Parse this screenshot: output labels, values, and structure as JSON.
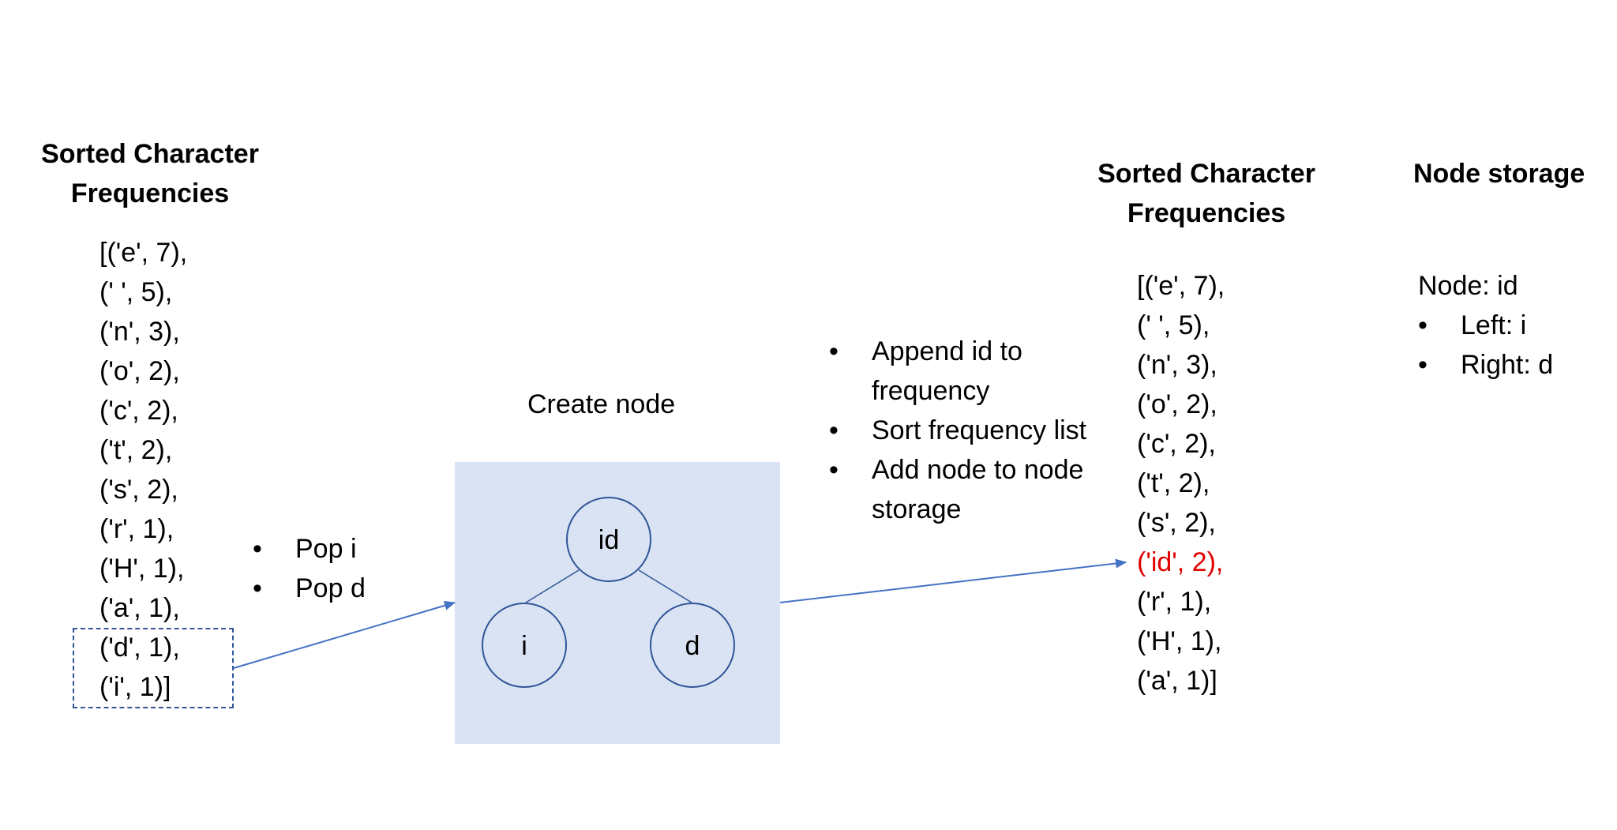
{
  "left_panel": {
    "title_line1": "Sorted Character",
    "title_line2": "Frequencies",
    "rows": [
      "[('e', 7),",
      "(' ', 5),",
      "('n', 3),",
      "('o', 2),",
      "('c', 2),",
      "('t', 2),",
      "('s', 2),",
      "('r', 1),",
      "('H', 1),",
      "('a', 1),",
      "('d', 1),",
      "('i', 1)]"
    ]
  },
  "pop_steps": [
    "Pop i",
    "Pop d"
  ],
  "create_node": {
    "label": "Create node",
    "root": "id",
    "left": "i",
    "right": "d"
  },
  "update_steps": [
    "Append id to frequency",
    "Sort frequency list",
    "Add node to node storage"
  ],
  "right_panel": {
    "title_line1": "Sorted Character",
    "title_line2": "Frequencies",
    "rows": [
      "[('e', 7),",
      "(' ', 5),",
      "('n', 3),",
      "('o', 2),",
      "('c', 2),",
      "('t', 2),",
      "('s', 2),",
      "('id', 2),",
      "('r', 1),",
      "('H', 1),",
      "('a', 1)]"
    ],
    "highlight_row": "('id', 2),"
  },
  "node_storage": {
    "title": "Node storage",
    "node_line": "Node: id",
    "children": [
      "Left: i",
      "Right: d"
    ]
  },
  "colors": {
    "node_box": "#dae3f3",
    "node_stroke": "#2f5597",
    "arrow": "#4472c4",
    "highlight": "#e00000"
  }
}
